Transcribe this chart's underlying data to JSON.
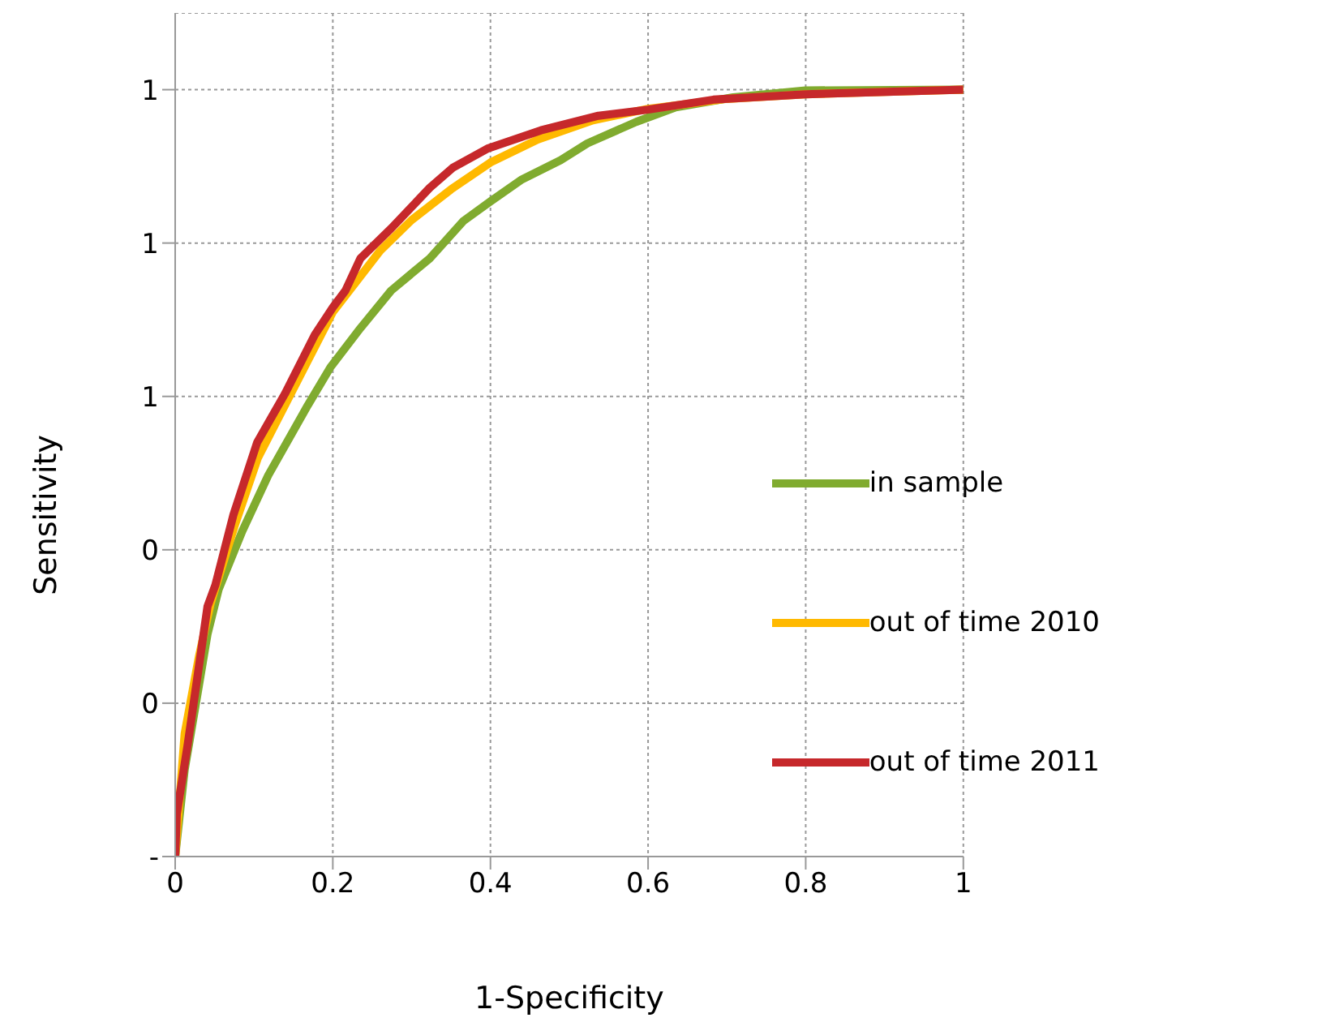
{
  "chart_data": {
    "type": "line",
    "xlabel": "1-Specificity",
    "ylabel": "Sensitivity",
    "xlim": [
      0,
      1
    ],
    "xticks": [
      0,
      0.2,
      0.4,
      0.6,
      0.8,
      1
    ],
    "ylim": [
      0,
      1.1
    ],
    "yticks": [
      {
        "value": 0,
        "label": "-"
      },
      {
        "value": 0.2,
        "label": "0"
      },
      {
        "value": 0.4,
        "label": "0"
      },
      {
        "value": 0.6,
        "label": "1"
      },
      {
        "value": 0.8,
        "label": "1"
      },
      {
        "value": 1,
        "label": "1"
      }
    ],
    "grid": true,
    "legend": "right",
    "marker": "none",
    "line_style": "solid",
    "series": [
      {
        "name": "in sample",
        "color": "#80ab2f",
        "x": [
          0,
          0.012,
          0.026,
          0.041,
          0.055,
          0.085,
          0.118,
          0.168,
          0.197,
          0.235,
          0.274,
          0.323,
          0.366,
          0.401,
          0.44,
          0.489,
          0.523,
          0.585,
          0.635,
          0.708,
          0.8,
          1
        ],
        "values": [
          0,
          0.113,
          0.198,
          0.29,
          0.348,
          0.424,
          0.497,
          0.588,
          0.638,
          0.689,
          0.738,
          0.78,
          0.829,
          0.855,
          0.883,
          0.908,
          0.93,
          0.958,
          0.977,
          0.99,
          0.999,
          1
        ]
      },
      {
        "name": "out of time 2010",
        "color": "#ffb900",
        "x": [
          0,
          0.012,
          0.03,
          0.045,
          0.075,
          0.105,
          0.14,
          0.18,
          0.2,
          0.23,
          0.26,
          0.3,
          0.35,
          0.4,
          0.46,
          0.53,
          0.6,
          0.7,
          0.8,
          1
        ],
        "values": [
          0,
          0.16,
          0.26,
          0.33,
          0.43,
          0.52,
          0.59,
          0.67,
          0.71,
          0.75,
          0.79,
          0.83,
          0.87,
          0.905,
          0.935,
          0.96,
          0.975,
          0.988,
          0.994,
          1
        ]
      },
      {
        "name": "out of time 2011",
        "color": "#c6282b",
        "x": [
          0,
          0.002,
          0.016,
          0.029,
          0.041,
          0.051,
          0.074,
          0.104,
          0.139,
          0.177,
          0.2,
          0.216,
          0.235,
          0.274,
          0.323,
          0.352,
          0.396,
          0.464,
          0.537,
          0.6,
          0.683,
          0.8,
          1
        ],
        "values": [
          0,
          0.055,
          0.147,
          0.24,
          0.326,
          0.354,
          0.446,
          0.54,
          0.603,
          0.68,
          0.716,
          0.738,
          0.78,
          0.819,
          0.872,
          0.898,
          0.923,
          0.947,
          0.966,
          0.974,
          0.987,
          0.994,
          1
        ]
      }
    ]
  }
}
